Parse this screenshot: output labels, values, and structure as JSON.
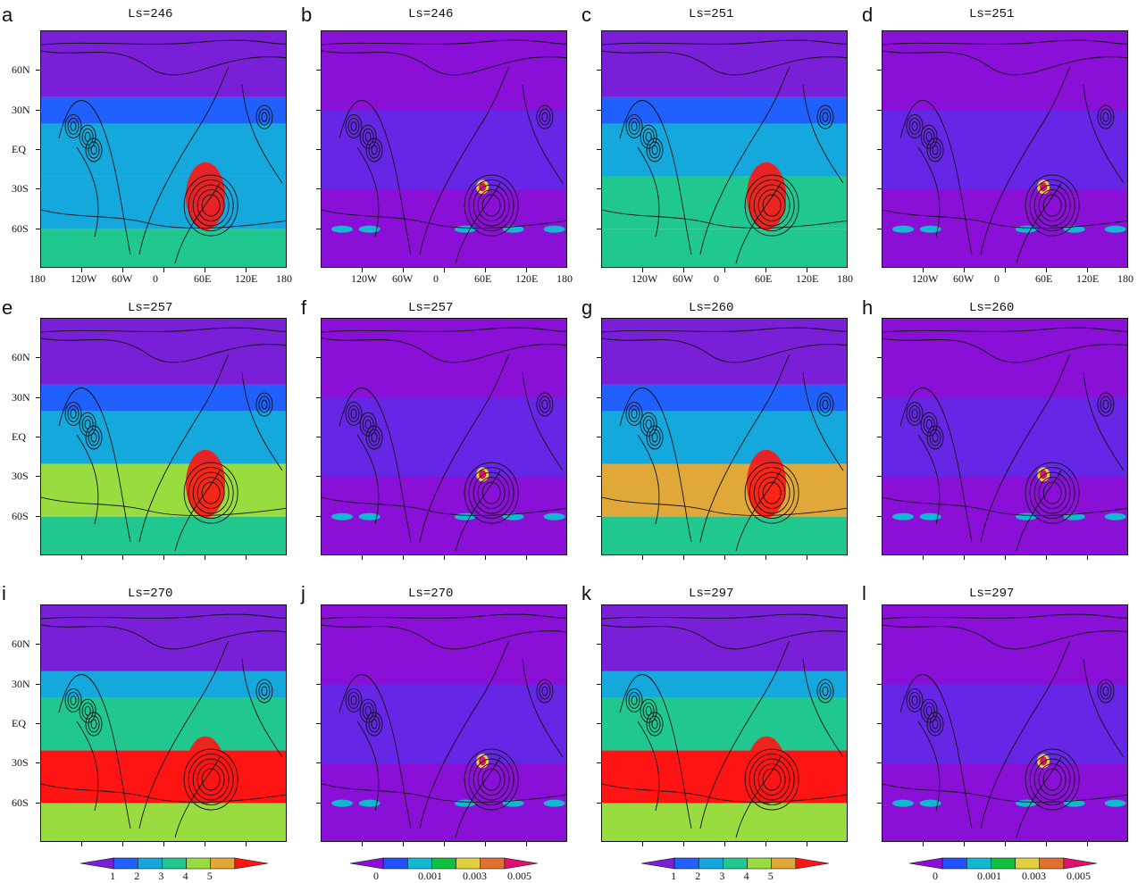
{
  "chart_data": {
    "type": "heatmap",
    "panels": [
      {
        "letter": "a",
        "title": "Ls=246",
        "field": "tau",
        "level": 1
      },
      {
        "letter": "b",
        "title": "Ls=246",
        "field": "lift",
        "level": 1
      },
      {
        "letter": "c",
        "title": "Ls=251",
        "field": "tau",
        "level": 2
      },
      {
        "letter": "d",
        "title": "Ls=251",
        "field": "lift",
        "level": 2
      },
      {
        "letter": "e",
        "title": "Ls=257",
        "field": "tau",
        "level": 3
      },
      {
        "letter": "f",
        "title": "Ls=257",
        "field": "lift",
        "level": 3
      },
      {
        "letter": "g",
        "title": "Ls=260",
        "field": "tau",
        "level": 3.5
      },
      {
        "letter": "h",
        "title": "Ls=260",
        "field": "lift",
        "level": 3.5
      },
      {
        "letter": "i",
        "title": "Ls=270",
        "field": "tau",
        "level": 4.5
      },
      {
        "letter": "j",
        "title": "Ls=270",
        "field": "lift",
        "level": 4.5
      },
      {
        "letter": "k",
        "title": "Ls=297",
        "field": "tau",
        "level": 5
      },
      {
        "letter": "l",
        "title": "Ls=297",
        "field": "lift",
        "level": 5
      }
    ],
    "x_ticks": [
      "180",
      "120W",
      "60W",
      "0",
      "60E",
      "120E",
      "180"
    ],
    "y_ticks": [
      "60N",
      "30N",
      "EQ",
      "30S",
      "60S"
    ],
    "xlim": [
      -180,
      180
    ],
    "ylim": [
      -90,
      90
    ],
    "colorbars": [
      {
        "labels": [
          "1",
          "2",
          "3",
          "4",
          "5"
        ],
        "colors": [
          "#7a1fd8",
          "#2060ff",
          "#14a8dc",
          "#20c890",
          "#98dc40",
          "#e0a838",
          "#ff1414"
        ]
      },
      {
        "labels": [
          "0",
          "0.001",
          "0.003",
          "0.005"
        ],
        "colors": [
          "#8a10d8",
          "#2050ff",
          "#10b8d0",
          "#10c040",
          "#e0d040",
          "#e07030",
          "#e01070"
        ]
      }
    ],
    "colors": {
      "tau": [
        "#7a1fd8",
        "#2060ff",
        "#14a8dc",
        "#20c890",
        "#98dc40",
        "#e0a838",
        "#ff1414"
      ],
      "lift": [
        "#8a10d8",
        "#2050ff",
        "#10b8d0",
        "#10c040",
        "#e0d040",
        "#e07030",
        "#e01070"
      ]
    }
  }
}
